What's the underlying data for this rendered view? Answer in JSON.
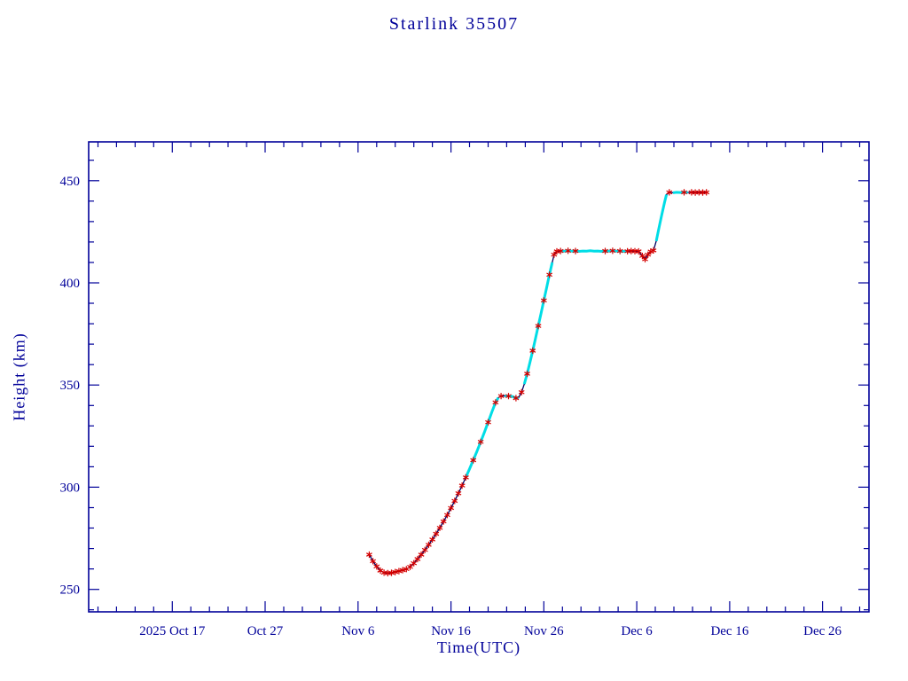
{
  "colors": {
    "axis": "#000099",
    "series_line": "#000060",
    "marker": "#d40000",
    "highlight": "#00dde6",
    "background": "#ffffff"
  },
  "chart_data": {
    "type": "line",
    "title": "Starlink 35507",
    "xlabel": "Time(UTC)",
    "ylabel": "Height (km)",
    "x_unit": "days since 2025-10-08 UTC",
    "xlim": [
      0,
      84
    ],
    "ylim": [
      239,
      469
    ],
    "x_ticks": [
      {
        "day": 9,
        "label": "2025 Oct 17"
      },
      {
        "day": 19,
        "label": "Oct 27"
      },
      {
        "day": 29,
        "label": "Nov 6"
      },
      {
        "day": 39,
        "label": "Nov 16"
      },
      {
        "day": 49,
        "label": "Nov 26"
      },
      {
        "day": 59,
        "label": "Dec 6"
      },
      {
        "day": 69,
        "label": "Dec 16"
      },
      {
        "day": 79,
        "label": "Dec 26"
      }
    ],
    "x_minor_step": 2,
    "y_ticks": [
      250,
      300,
      350,
      400,
      450
    ],
    "y_minor_step": 10,
    "grid": false,
    "legend": null,
    "points": [
      [
        30.2,
        267.0
      ],
      [
        30.6,
        263.8
      ],
      [
        31.0,
        261.2
      ],
      [
        31.4,
        259.2
      ],
      [
        31.8,
        258.2
      ],
      [
        32.2,
        257.9
      ],
      [
        32.6,
        258.1
      ],
      [
        33.0,
        258.5
      ],
      [
        33.4,
        258.9
      ],
      [
        33.8,
        259.4
      ],
      [
        34.2,
        259.9
      ],
      [
        34.6,
        261.0
      ],
      [
        35.0,
        262.8
      ],
      [
        35.4,
        264.8
      ],
      [
        35.8,
        267.0
      ],
      [
        36.2,
        269.3
      ],
      [
        36.6,
        271.8
      ],
      [
        37.0,
        274.4
      ],
      [
        37.4,
        277.2
      ],
      [
        37.8,
        280.1
      ],
      [
        38.2,
        283.2
      ],
      [
        38.6,
        286.4
      ],
      [
        39.0,
        289.8
      ],
      [
        39.4,
        293.3
      ],
      [
        39.8,
        297.0
      ],
      [
        40.2,
        300.8
      ],
      [
        40.6,
        304.8
      ],
      [
        41.0,
        308.9
      ],
      [
        41.4,
        313.2
      ],
      [
        41.8,
        317.6
      ],
      [
        42.2,
        322.2
      ],
      [
        42.6,
        326.9
      ],
      [
        43.0,
        331.8
      ],
      [
        43.4,
        336.8
      ],
      [
        43.8,
        341.5
      ],
      [
        44.1,
        343.8
      ],
      [
        44.4,
        344.6
      ],
      [
        44.8,
        344.7
      ],
      [
        45.2,
        344.6
      ],
      [
        45.6,
        344.4
      ],
      [
        46.0,
        343.6
      ],
      [
        46.3,
        343.9
      ],
      [
        46.6,
        346.5
      ],
      [
        46.9,
        350.5
      ],
      [
        47.2,
        355.5
      ],
      [
        47.5,
        361.0
      ],
      [
        47.8,
        366.8
      ],
      [
        48.1,
        372.8
      ],
      [
        48.4,
        378.9
      ],
      [
        48.7,
        385.1
      ],
      [
        49.0,
        391.4
      ],
      [
        49.3,
        397.7
      ],
      [
        49.6,
        404.0
      ],
      [
        49.9,
        410.0
      ],
      [
        50.1,
        413.8
      ],
      [
        50.4,
        415.4
      ],
      [
        50.8,
        415.6
      ],
      [
        51.2,
        415.5
      ],
      [
        51.6,
        415.7
      ],
      [
        52.0,
        415.5
      ],
      [
        52.4,
        415.6
      ],
      [
        52.8,
        415.4
      ],
      [
        53.2,
        415.6
      ],
      [
        53.6,
        415.5
      ],
      [
        54.0,
        415.7
      ],
      [
        54.4,
        415.5
      ],
      [
        54.8,
        415.6
      ],
      [
        55.2,
        415.4
      ],
      [
        55.6,
        415.6
      ],
      [
        56.0,
        415.5
      ],
      [
        56.4,
        415.7
      ],
      [
        56.8,
        415.5
      ],
      [
        57.2,
        415.6
      ],
      [
        57.6,
        415.4
      ],
      [
        58.0,
        415.5
      ],
      [
        58.4,
        415.6
      ],
      [
        58.8,
        415.5
      ],
      [
        59.2,
        415.4
      ],
      [
        59.6,
        413.2
      ],
      [
        59.9,
        411.6
      ],
      [
        60.2,
        413.8
      ],
      [
        60.5,
        415.3
      ],
      [
        60.8,
        415.9
      ],
      [
        61.1,
        420.5
      ],
      [
        61.4,
        427.0
      ],
      [
        61.7,
        433.5
      ],
      [
        62.0,
        439.5
      ],
      [
        62.2,
        443.2
      ],
      [
        62.5,
        444.3
      ],
      [
        62.9,
        444.1
      ],
      [
        63.3,
        444.3
      ],
      [
        63.7,
        444.2
      ],
      [
        64.1,
        444.3
      ],
      [
        64.5,
        444.2
      ],
      [
        64.9,
        444.3
      ],
      [
        65.3,
        444.2
      ],
      [
        65.7,
        444.3
      ],
      [
        66.1,
        444.2
      ],
      [
        66.5,
        444.3
      ]
    ],
    "highlight_segments": [
      [
        40.4,
        44.2
      ],
      [
        44.5,
        46.4
      ],
      [
        46.9,
        49.9
      ],
      [
        50.6,
        58.0
      ],
      [
        61.0,
        62.2
      ],
      [
        62.8,
        64.8
      ]
    ],
    "marker_gaps": [
      [
        53.0,
        55.0
      ],
      [
        61.2,
        62.0
      ],
      [
        62.8,
        63.6
      ]
    ]
  }
}
